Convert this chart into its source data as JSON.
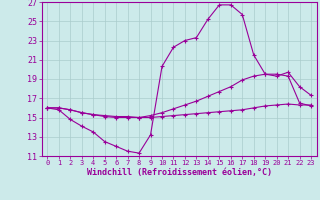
{
  "background_color": "#cceaea",
  "grid_color": "#aacccc",
  "line_color": "#990099",
  "xlabel": "Windchill (Refroidissement éolien,°C)",
  "xlim": [
    -0.5,
    23.5
  ],
  "ylim": [
    11,
    27
  ],
  "yticks": [
    11,
    13,
    15,
    17,
    19,
    21,
    23,
    25,
    27
  ],
  "xticks": [
    0,
    1,
    2,
    3,
    4,
    5,
    6,
    7,
    8,
    9,
    10,
    11,
    12,
    13,
    14,
    15,
    16,
    17,
    18,
    19,
    20,
    21,
    22,
    23
  ],
  "line1_x": [
    0,
    1,
    2,
    3,
    4,
    5,
    6,
    7,
    8,
    9,
    10,
    11,
    12,
    13,
    14,
    15,
    16,
    17,
    18,
    19,
    20,
    21,
    22,
    23
  ],
  "line1_y": [
    16.0,
    15.8,
    14.8,
    14.1,
    13.5,
    12.5,
    12.0,
    11.5,
    11.3,
    13.2,
    20.3,
    22.3,
    23.0,
    23.3,
    25.2,
    26.7,
    26.7,
    25.7,
    21.5,
    19.5,
    19.3,
    19.7,
    18.2,
    17.3
  ],
  "line2_x": [
    0,
    1,
    2,
    3,
    4,
    5,
    6,
    7,
    8,
    9,
    10,
    11,
    12,
    13,
    14,
    15,
    16,
    17,
    18,
    19,
    20,
    21,
    22,
    23
  ],
  "line2_y": [
    16.0,
    16.0,
    15.8,
    15.5,
    15.3,
    15.2,
    15.1,
    15.1,
    15.0,
    15.2,
    15.5,
    15.9,
    16.3,
    16.7,
    17.2,
    17.7,
    18.2,
    18.9,
    19.3,
    19.5,
    19.5,
    19.3,
    16.5,
    16.2
  ],
  "line3_x": [
    0,
    1,
    2,
    3,
    4,
    5,
    6,
    7,
    8,
    9,
    10,
    11,
    12,
    13,
    14,
    15,
    16,
    17,
    18,
    19,
    20,
    21,
    22,
    23
  ],
  "line3_y": [
    16.0,
    16.0,
    15.8,
    15.5,
    15.3,
    15.1,
    15.0,
    15.0,
    15.0,
    15.0,
    15.1,
    15.2,
    15.3,
    15.4,
    15.5,
    15.6,
    15.7,
    15.8,
    16.0,
    16.2,
    16.3,
    16.4,
    16.3,
    16.3
  ]
}
